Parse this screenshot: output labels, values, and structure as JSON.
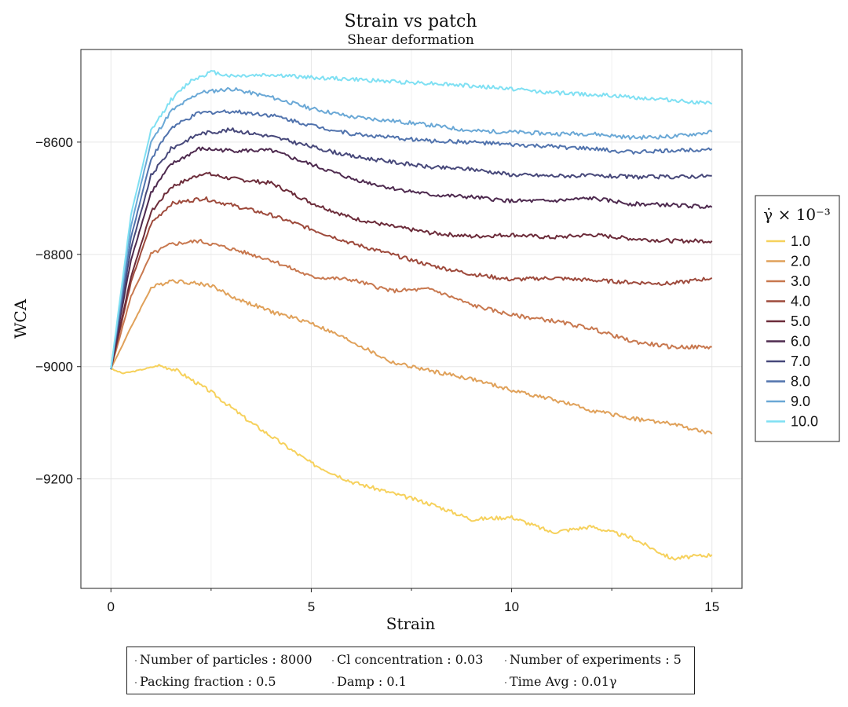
{
  "chart_data": {
    "type": "line",
    "title": "Strain vs patch",
    "subtitle": "Shear deformation",
    "xlabel": "Strain",
    "ylabel": "WCA",
    "xlim": [
      -0.75,
      15.75
    ],
    "ylim": [
      -9395,
      -8435
    ],
    "x_ticks": [
      0,
      5,
      10,
      15
    ],
    "y_ticks": [
      -8600,
      -8800,
      -9000,
      -9200
    ],
    "x_tick_labels": [
      "0",
      "5",
      "10",
      "15"
    ],
    "y_tick_labels": [
      "−8600",
      "−8800",
      "−9000",
      "−9200"
    ],
    "grid": true,
    "legend_position": "right",
    "legend_title": "γ̇ × 10⁻³",
    "series": [
      {
        "name": "1.0",
        "color": "#f6d15c",
        "points": [
          [
            0,
            -9004
          ],
          [
            0.3,
            -9012
          ],
          [
            0.6,
            -9008
          ],
          [
            1.2,
            -8998
          ],
          [
            1.6,
            -9005
          ],
          [
            2.5,
            -9045
          ],
          [
            3.5,
            -9100
          ],
          [
            5,
            -9172
          ],
          [
            6,
            -9205
          ],
          [
            7,
            -9225
          ],
          [
            8,
            -9245
          ],
          [
            9,
            -9272
          ],
          [
            10,
            -9268
          ],
          [
            11,
            -9295
          ],
          [
            12,
            -9285
          ],
          [
            13,
            -9305
          ],
          [
            14,
            -9342
          ],
          [
            15,
            -9335
          ]
        ]
      },
      {
        "name": "2.0",
        "color": "#e0a15a",
        "points": [
          [
            0,
            -9004
          ],
          [
            0.5,
            -8930
          ],
          [
            1.0,
            -8860
          ],
          [
            1.5,
            -8846
          ],
          [
            2.5,
            -8855
          ],
          [
            3,
            -8875
          ],
          [
            4,
            -8902
          ],
          [
            5,
            -8922
          ],
          [
            6,
            -8955
          ],
          [
            7,
            -8992
          ],
          [
            8,
            -9008
          ],
          [
            9,
            -9022
          ],
          [
            10,
            -9042
          ],
          [
            11,
            -9058
          ],
          [
            12,
            -9078
          ],
          [
            13,
            -9092
          ],
          [
            14,
            -9102
          ],
          [
            15,
            -9120
          ]
        ]
      },
      {
        "name": "3.0",
        "color": "#c8784f",
        "points": [
          [
            0,
            -9004
          ],
          [
            0.5,
            -8875
          ],
          [
            1.0,
            -8800
          ],
          [
            1.5,
            -8782
          ],
          [
            2.2,
            -8776
          ],
          [
            3,
            -8790
          ],
          [
            4,
            -8810
          ],
          [
            5,
            -8840
          ],
          [
            6,
            -8845
          ],
          [
            7,
            -8865
          ],
          [
            8,
            -8862
          ],
          [
            9,
            -8890
          ],
          [
            10,
            -8908
          ],
          [
            11,
            -8918
          ],
          [
            12,
            -8932
          ],
          [
            13,
            -8955
          ],
          [
            14,
            -8965
          ],
          [
            15,
            -8965
          ]
        ]
      },
      {
        "name": "4.0",
        "color": "#9e4a3c",
        "points": [
          [
            0,
            -9004
          ],
          [
            0.5,
            -8850
          ],
          [
            1.0,
            -8745
          ],
          [
            1.5,
            -8710
          ],
          [
            2.3,
            -8700
          ],
          [
            3,
            -8712
          ],
          [
            4,
            -8730
          ],
          [
            5,
            -8755
          ],
          [
            6,
            -8780
          ],
          [
            7,
            -8800
          ],
          [
            8,
            -8820
          ],
          [
            9,
            -8835
          ],
          [
            10,
            -8845
          ],
          [
            11,
            -8842
          ],
          [
            12,
            -8846
          ],
          [
            13,
            -8850
          ],
          [
            14,
            -8852
          ],
          [
            15,
            -8842
          ]
        ]
      },
      {
        "name": "5.0",
        "color": "#6c2c3a",
        "points": [
          [
            0,
            -9004
          ],
          [
            0.5,
            -8840
          ],
          [
            1.0,
            -8725
          ],
          [
            1.5,
            -8680
          ],
          [
            2.3,
            -8655
          ],
          [
            3,
            -8665
          ],
          [
            4,
            -8673
          ],
          [
            5,
            -8708
          ],
          [
            6,
            -8735
          ],
          [
            7,
            -8750
          ],
          [
            8,
            -8762
          ],
          [
            9,
            -8768
          ],
          [
            10,
            -8765
          ],
          [
            11,
            -8770
          ],
          [
            12,
            -8765
          ],
          [
            13,
            -8772
          ],
          [
            14,
            -8776
          ],
          [
            15,
            -8776
          ]
        ]
      },
      {
        "name": "6.0",
        "color": "#4e2a4f",
        "points": [
          [
            0,
            -9004
          ],
          [
            0.5,
            -8810
          ],
          [
            1.0,
            -8690
          ],
          [
            1.5,
            -8640
          ],
          [
            2.2,
            -8612
          ],
          [
            3,
            -8615
          ],
          [
            4,
            -8615
          ],
          [
            5,
            -8640
          ],
          [
            6,
            -8665
          ],
          [
            7,
            -8682
          ],
          [
            8,
            -8694
          ],
          [
            9,
            -8698
          ],
          [
            10,
            -8705
          ],
          [
            11,
            -8705
          ],
          [
            12,
            -8700
          ],
          [
            13,
            -8710
          ],
          [
            14,
            -8712
          ],
          [
            15,
            -8716
          ]
        ]
      },
      {
        "name": "7.0",
        "color": "#47487a",
        "points": [
          [
            0,
            -9004
          ],
          [
            0.5,
            -8790
          ],
          [
            1.0,
            -8660
          ],
          [
            1.5,
            -8612
          ],
          [
            2.2,
            -8585
          ],
          [
            3,
            -8578
          ],
          [
            4,
            -8590
          ],
          [
            5,
            -8608
          ],
          [
            6,
            -8625
          ],
          [
            7,
            -8635
          ],
          [
            8,
            -8645
          ],
          [
            9,
            -8648
          ],
          [
            10,
            -8658
          ],
          [
            11,
            -8660
          ],
          [
            12,
            -8660
          ],
          [
            13,
            -8662
          ],
          [
            14,
            -8662
          ],
          [
            15,
            -8660
          ]
        ]
      },
      {
        "name": "8.0",
        "color": "#5173ad",
        "points": [
          [
            0,
            -9004
          ],
          [
            0.5,
            -8770
          ],
          [
            1.0,
            -8630
          ],
          [
            1.5,
            -8575
          ],
          [
            2.2,
            -8548
          ],
          [
            3,
            -8545
          ],
          [
            4,
            -8552
          ],
          [
            5,
            -8570
          ],
          [
            6,
            -8585
          ],
          [
            7,
            -8592
          ],
          [
            8,
            -8598
          ],
          [
            9,
            -8600
          ],
          [
            10,
            -8605
          ],
          [
            11,
            -8608
          ],
          [
            12,
            -8612
          ],
          [
            13,
            -8618
          ],
          [
            14,
            -8615
          ],
          [
            15,
            -8612
          ]
        ]
      },
      {
        "name": "9.0",
        "color": "#6aa8d6",
        "points": [
          [
            0,
            -9004
          ],
          [
            0.5,
            -8750
          ],
          [
            1.0,
            -8600
          ],
          [
            1.5,
            -8545
          ],
          [
            2.2,
            -8512
          ],
          [
            3,
            -8505
          ],
          [
            4,
            -8520
          ],
          [
            5,
            -8540
          ],
          [
            6,
            -8555
          ],
          [
            7,
            -8562
          ],
          [
            8,
            -8570
          ],
          [
            9,
            -8580
          ],
          [
            10,
            -8582
          ],
          [
            11,
            -8585
          ],
          [
            12,
            -8585
          ],
          [
            13,
            -8592
          ],
          [
            14,
            -8590
          ],
          [
            15,
            -8582
          ]
        ]
      },
      {
        "name": "10.0",
        "color": "#7fe0f3",
        "points": [
          [
            0,
            -9004
          ],
          [
            0.5,
            -8730
          ],
          [
            1.0,
            -8580
          ],
          [
            1.5,
            -8525
          ],
          [
            2.0,
            -8490
          ],
          [
            2.5,
            -8475
          ],
          [
            3,
            -8482
          ],
          [
            4,
            -8480
          ],
          [
            5,
            -8485
          ],
          [
            6,
            -8488
          ],
          [
            7,
            -8492
          ],
          [
            8,
            -8495
          ],
          [
            9,
            -8500
          ],
          [
            10,
            -8505
          ],
          [
            11,
            -8512
          ],
          [
            12,
            -8515
          ],
          [
            13,
            -8520
          ],
          [
            14,
            -8525
          ],
          [
            15,
            -8532
          ]
        ]
      }
    ]
  },
  "notes": {
    "row1": [
      "Number of particles : 8000",
      "Cl concentration : 0.03",
      "Number of experiments : 5"
    ],
    "row2": [
      "Packing fraction : 0.5",
      "Damp : 0.1",
      "Time Avg : 0.01γ"
    ]
  }
}
